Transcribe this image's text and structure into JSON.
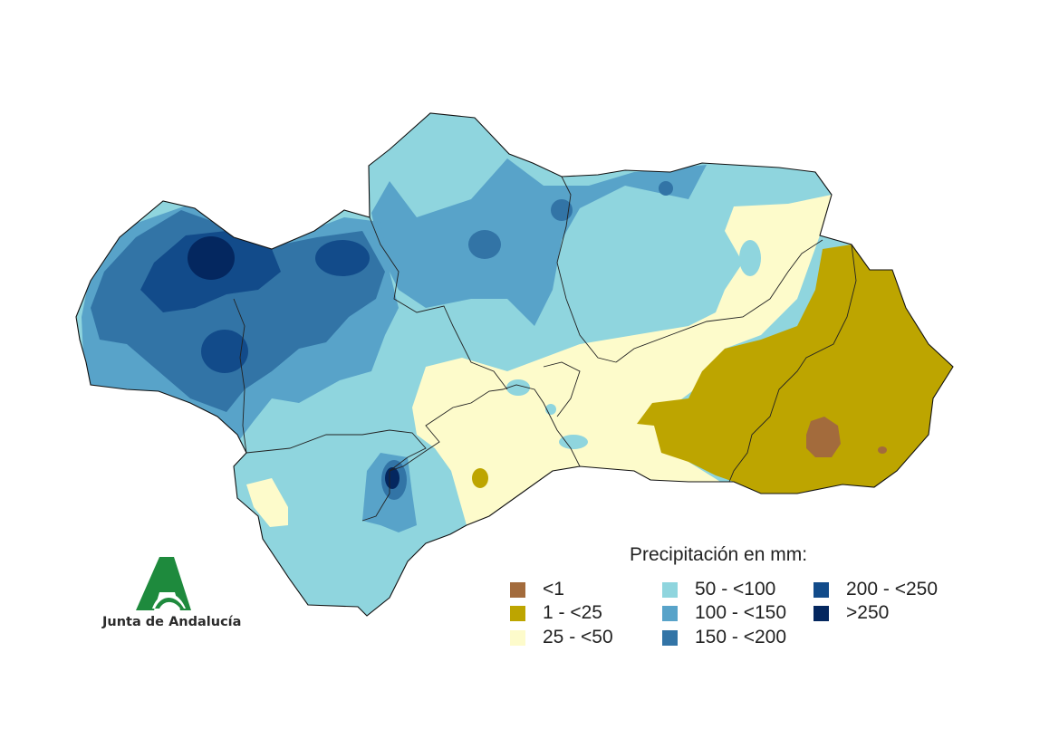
{
  "legend": {
    "title": "Precipitación en mm:",
    "items": [
      {
        "label": "<1",
        "color": "#A36B3C"
      },
      {
        "label": "1 - <25",
        "color": "#BDA500"
      },
      {
        "label": "25 - <50",
        "color": "#FDFBCB"
      },
      {
        "label": "50 - <100",
        "color": "#8FD5DE"
      },
      {
        "label": "100 - <150",
        "color": "#58A3C9"
      },
      {
        "label": "150 - <200",
        "color": "#3274A6"
      },
      {
        "label": "200 - <250",
        "color": "#124B8A"
      },
      {
        "label": ">250",
        "color": "#04275F"
      }
    ]
  },
  "logo": {
    "text": "Junta de Andalucía",
    "icon": "junta-de-andalucia-logo-icon",
    "color": "#1E8A3D"
  }
}
